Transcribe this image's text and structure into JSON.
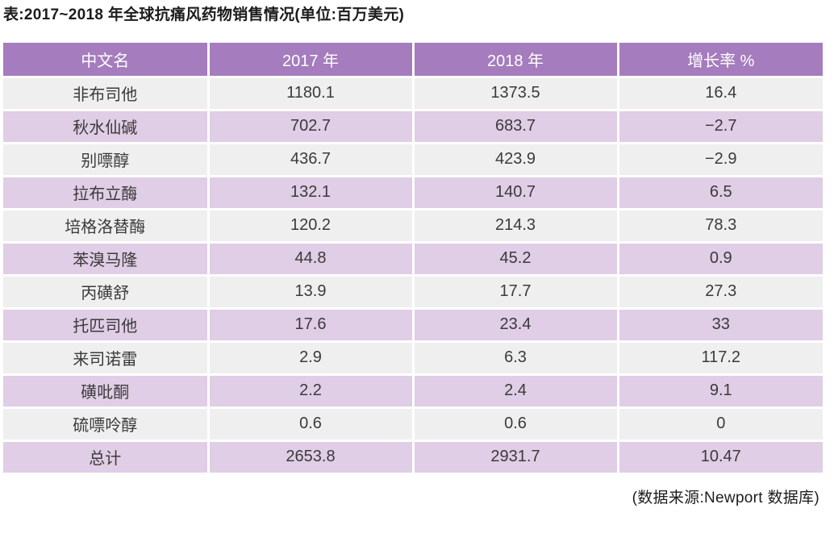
{
  "page": {
    "title": "表:2017~2018 年全球抗痛风药物销售情况(单位:百万美元)",
    "source_note": "(数据来源:Newport 数据库)"
  },
  "colors": {
    "header_bg": "#a57cbd",
    "row_stripe_gray": "#f0eff0",
    "row_stripe_lavender": "#e0cde6",
    "separator": "#ffffff",
    "header_text": "#ffffff",
    "body_text": "#3b3b3b"
  },
  "table": {
    "columns": [
      "中文名",
      "2017 年",
      "2018 年",
      "增长率 %"
    ],
    "rows": [
      {
        "name": "非布司他",
        "y2017": "1180.1",
        "y2018": "1373.5",
        "growth": "16.4"
      },
      {
        "name": "秋水仙碱",
        "y2017": "702.7",
        "y2018": "683.7",
        "growth": "−2.7"
      },
      {
        "name": "别嘌醇",
        "y2017": "436.7",
        "y2018": "423.9",
        "growth": "−2.9"
      },
      {
        "name": "拉布立酶",
        "y2017": "132.1",
        "y2018": "140.7",
        "growth": "6.5"
      },
      {
        "name": "培格洛替酶",
        "y2017": "120.2",
        "y2018": "214.3",
        "growth": "78.3"
      },
      {
        "name": "苯溴马隆",
        "y2017": "44.8",
        "y2018": "45.2",
        "growth": "0.9"
      },
      {
        "name": "丙磺舒",
        "y2017": "13.9",
        "y2018": "17.7",
        "growth": "27.3"
      },
      {
        "name": "托匹司他",
        "y2017": "17.6",
        "y2018": "23.4",
        "growth": "33"
      },
      {
        "name": "来司诺雷",
        "y2017": "2.9",
        "y2018": "6.3",
        "growth": "117.2"
      },
      {
        "name": "磺吡酮",
        "y2017": "2.2",
        "y2018": "2.4",
        "growth": "9.1"
      },
      {
        "name": "硫嘌呤醇",
        "y2017": "0.6",
        "y2018": "0.6",
        "growth": "0"
      },
      {
        "name": "总计",
        "y2017": "2653.8",
        "y2018": "2931.7",
        "growth": "10.47"
      }
    ]
  }
}
